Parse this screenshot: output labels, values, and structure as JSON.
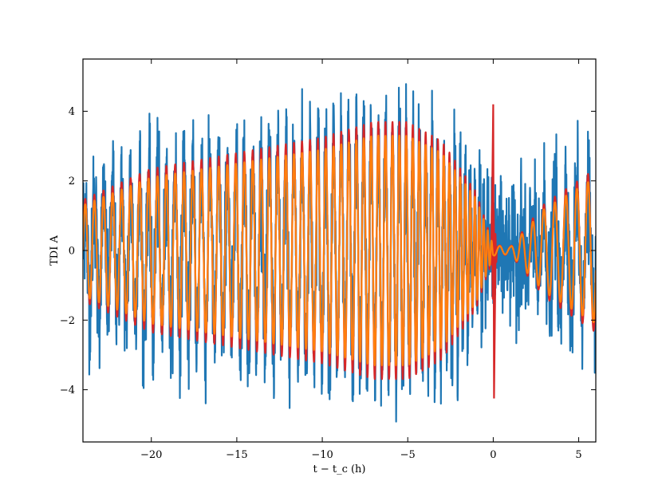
{
  "chart_data": {
    "type": "line",
    "xlabel": "t − t_c (h)",
    "ylabel": "TDI A",
    "xlim": [
      -24,
      6
    ],
    "ylim": [
      -5.5,
      5.5
    ],
    "xticks": [
      -20,
      -15,
      -10,
      -5,
      0,
      5
    ],
    "yticks": [
      -4,
      -2,
      0,
      2,
      4
    ],
    "xtick_labels": [
      "−20",
      "−15",
      "−10",
      "−5",
      "0",
      "5"
    ],
    "ytick_labels": [
      "−4",
      "−2",
      "0",
      "2",
      "4"
    ],
    "grid": false,
    "series": [
      {
        "color": "#1f77b4",
        "description": "noisy data (signal plus noise)",
        "noise_amplitude_approx": 1.5,
        "peak_abs_approx": 5.0
      },
      {
        "color": "#d62728",
        "description": "injected signal with merger glitch",
        "merger_time": 0,
        "merger_peak": 4.2,
        "merger_trough": -4.25
      },
      {
        "color": "#ff7f0e",
        "description": "reconstructed/recovered signal",
        "envelope": [
          {
            "t": -24,
            "amp": 1.3
          },
          {
            "t": -20,
            "amp": 2.1
          },
          {
            "t": -15,
            "amp": 2.5
          },
          {
            "t": -10,
            "amp": 2.9
          },
          {
            "t": -7,
            "amp": 3.3
          },
          {
            "t": -5,
            "amp": 3.3
          },
          {
            "t": -3,
            "amp": 2.8
          },
          {
            "t": -1,
            "amp": 1.5
          },
          {
            "t": 0,
            "amp": 0.15
          },
          {
            "t": 1,
            "amp": 0.1
          },
          {
            "t": 3,
            "amp": 1.2
          },
          {
            "t": 6,
            "amp": 2.1
          }
        ]
      }
    ]
  }
}
